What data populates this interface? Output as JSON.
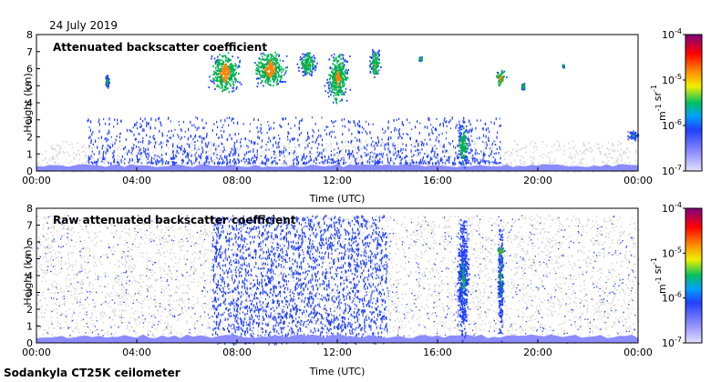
{
  "header": {
    "date": "24 July 2019"
  },
  "footer": {
    "instrument": "Sodankyla CT25K ceilometer"
  },
  "chart_data": [
    {
      "type": "heatmap",
      "title": "Attenuated backscatter coefficient",
      "xlabel": "Time (UTC)",
      "ylabel": "Height (km)",
      "xlim": [
        0,
        24
      ],
      "ylim": [
        0,
        8
      ],
      "x_ticks": [
        0,
        4,
        8,
        12,
        16,
        20,
        24
      ],
      "x_tick_labels": [
        "00:00",
        "04:00",
        "08:00",
        "12:00",
        "16:00",
        "20:00",
        "00:00"
      ],
      "y_ticks": [
        0,
        1,
        2,
        3,
        4,
        5,
        6,
        7,
        8
      ],
      "y_tick_labels": [
        "0",
        "1",
        "2",
        "3",
        "4",
        "5",
        "6",
        "7",
        "8"
      ],
      "colorbar": {
        "scale": "log",
        "min": 1e-07,
        "max": 0.0001,
        "tick_labels": [
          "10^-7",
          "10^-6",
          "10^-5",
          "10^-4"
        ],
        "unit": "m^-1 sr^-1"
      },
      "colors": {
        "background": "#d8d8d8",
        "low": "#8c8cff",
        "weak": "#2040ff",
        "mid": "#00b050",
        "strong": "#ff8000",
        "peak": "#ff0000"
      },
      "features": [
        {
          "kind": "background_noise",
          "t_start": 0,
          "t_end": 24,
          "h_min": 0,
          "h_max": 1.8
        },
        {
          "kind": "boundary_layer",
          "t_start": 0,
          "t_end": 24,
          "h_min": 0,
          "h_max": 0.4,
          "level": 2e-07
        },
        {
          "kind": "scattered_echoes",
          "t_start": 2.0,
          "t_end": 18.5,
          "h_min": 0.5,
          "h_max": 3.2,
          "level": 6e-07
        },
        {
          "kind": "cloud",
          "t_center": 2.8,
          "h_center": 5.3,
          "width": 0.15,
          "height": 0.8,
          "level": 5e-06
        },
        {
          "kind": "cloud",
          "t_center": 7.5,
          "h_center": 5.8,
          "width": 0.9,
          "height": 2.4,
          "level": 2e-05
        },
        {
          "kind": "cloud",
          "t_center": 9.3,
          "h_center": 6.0,
          "width": 1.0,
          "height": 2.2,
          "level": 2e-05
        },
        {
          "kind": "cloud",
          "t_center": 10.8,
          "h_center": 6.3,
          "width": 0.6,
          "height": 1.5,
          "level": 1e-05
        },
        {
          "kind": "cloud",
          "t_center": 12.0,
          "h_center": 5.5,
          "width": 0.7,
          "height": 3.0,
          "level": 1.5e-05
        },
        {
          "kind": "cloud",
          "t_center": 13.5,
          "h_center": 6.3,
          "width": 0.4,
          "height": 1.8,
          "level": 1e-05
        },
        {
          "kind": "cloud",
          "t_center": 15.3,
          "h_center": 6.6,
          "width": 0.1,
          "height": 0.3,
          "level": 8e-06
        },
        {
          "kind": "precipitation",
          "t_center": 17.0,
          "h_center": 1.6,
          "width": 0.35,
          "height": 2.8,
          "level": 8e-06
        },
        {
          "kind": "cloud",
          "t_center": 18.5,
          "h_center": 5.5,
          "width": 0.3,
          "height": 1.0,
          "level": 2e-05
        },
        {
          "kind": "cloud",
          "t_center": 19.4,
          "h_center": 5.0,
          "width": 0.1,
          "height": 0.4,
          "level": 8e-06
        },
        {
          "kind": "cloud",
          "t_center": 21.0,
          "h_center": 6.2,
          "width": 0.05,
          "height": 0.2,
          "level": 1e-05
        },
        {
          "kind": "low_cloud",
          "t_center": 23.8,
          "h_center": 2.1,
          "width": 0.4,
          "height": 0.6,
          "level": 3e-06
        }
      ]
    },
    {
      "type": "heatmap",
      "title": "Raw attenuated backscatter coefficient",
      "xlabel": "Time (UTC)",
      "ylabel": "Height (km)",
      "xlim": [
        0,
        24
      ],
      "ylim": [
        0,
        8
      ],
      "x_ticks": [
        0,
        4,
        8,
        12,
        16,
        20,
        24
      ],
      "x_tick_labels": [
        "00:00",
        "04:00",
        "08:00",
        "12:00",
        "16:00",
        "20:00",
        "00:00"
      ],
      "y_ticks": [
        0,
        1,
        2,
        3,
        4,
        5,
        6,
        7,
        8
      ],
      "y_tick_labels": [
        "0",
        "1",
        "2",
        "3",
        "4",
        "5",
        "6",
        "7",
        "8"
      ],
      "colorbar": {
        "scale": "log",
        "min": 1e-07,
        "max": 0.0001,
        "tick_labels": [
          "10^-7",
          "10^-6",
          "10^-5",
          "10^-4"
        ],
        "unit": "m^-1 sr^-1"
      },
      "colors": {
        "background": "#d8d8d8",
        "low": "#8c8cff",
        "weak": "#2040ff",
        "mid": "#00b050",
        "strong": "#ff8000",
        "peak": "#ff0000"
      },
      "features": [
        {
          "kind": "noise_field",
          "t_start": 0,
          "t_end": 24,
          "h_min": 0,
          "h_max": 7.6
        },
        {
          "kind": "dense_noise",
          "t_start": 7.0,
          "t_end": 14.0,
          "h_min": 0,
          "h_max": 7.6,
          "level": 6e-07
        },
        {
          "kind": "boundary_layer",
          "t_start": 0,
          "t_end": 24,
          "h_min": 0,
          "h_max": 0.5,
          "level": 2e-07
        },
        {
          "kind": "precipitation",
          "t_center": 17.0,
          "h_center": 3.8,
          "width": 0.4,
          "height": 7.6,
          "level": 3e-06
        },
        {
          "kind": "precipitation",
          "t_center": 18.5,
          "h_center": 3.8,
          "width": 0.2,
          "height": 7.6,
          "level": 3e-06
        },
        {
          "kind": "cloud",
          "t_center": 18.5,
          "h_center": 5.5,
          "width": 0.2,
          "height": 0.4,
          "level": 2e-05
        }
      ]
    }
  ]
}
